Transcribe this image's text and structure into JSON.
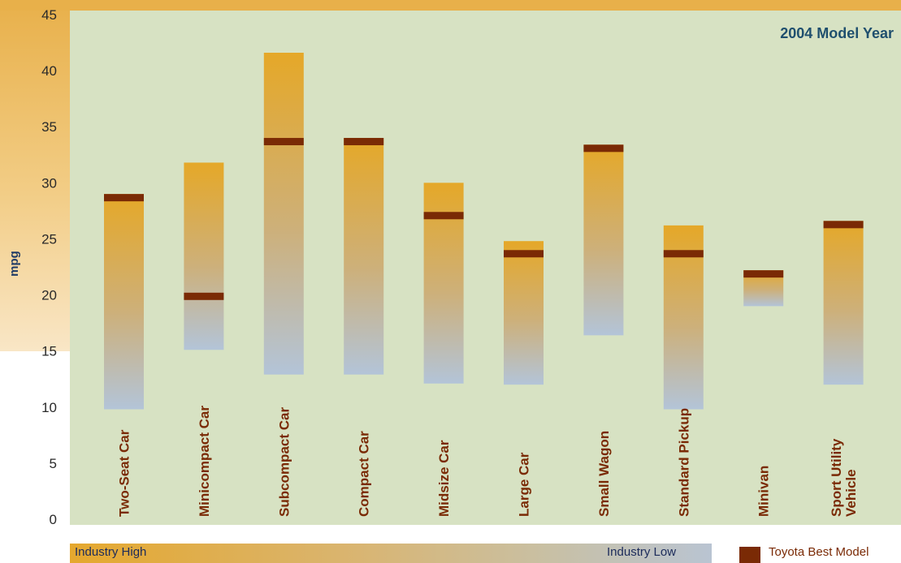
{
  "chart_data": {
    "type": "bar",
    "title": "2004 Model Year",
    "ylabel": "mpg",
    "xlabel": "",
    "ylim": [
      0,
      45
    ],
    "yticks": [
      0,
      5,
      10,
      15,
      20,
      25,
      30,
      35,
      40,
      45
    ],
    "categories": [
      "Two-Seat Car",
      "Minicompact Car",
      "Subcompact Car",
      "Compact Car",
      "Midsize Car",
      "Large Car",
      "Small  Wagon",
      "Standard Pickup",
      "Minivan",
      "Sport Utility Vehicle"
    ],
    "category_label_lines": [
      [
        "Two-Seat Car"
      ],
      [
        "Minicompact Car"
      ],
      [
        "Subcompact Car"
      ],
      [
        "Compact Car"
      ],
      [
        "Midsize Car"
      ],
      [
        "Large Car"
      ],
      [
        "Small  Wagon"
      ],
      [
        "Standard Pickup"
      ],
      [
        "Minivan"
      ],
      [
        "Sport Utility",
        "Vehicle"
      ]
    ],
    "series": [
      {
        "name": "Industry High",
        "values": [
          29.0,
          31.8,
          41.6,
          34.0,
          30.0,
          24.8,
          33.4,
          26.2,
          22.2,
          26.6
        ]
      },
      {
        "name": "Industry Low",
        "values": [
          9.8,
          15.1,
          12.9,
          12.9,
          12.1,
          12.0,
          16.4,
          9.8,
          19.0,
          12.0
        ]
      },
      {
        "name": "Toyota Best Model",
        "values": [
          29.0,
          20.2,
          34.0,
          34.0,
          27.4,
          24.0,
          33.4,
          24.0,
          22.2,
          26.6
        ]
      }
    ],
    "legend_position": "bottom",
    "colors": {
      "high": "#e5a828",
      "low": "#b3c4d8",
      "toyota": "#7a2a05",
      "plot_bg": "#d7e2c3",
      "frame": "#e8b04a"
    }
  },
  "legend": {
    "high_label": "Industry High",
    "low_label": "Industry Low",
    "toyota_label": "Toyota Best Model"
  }
}
